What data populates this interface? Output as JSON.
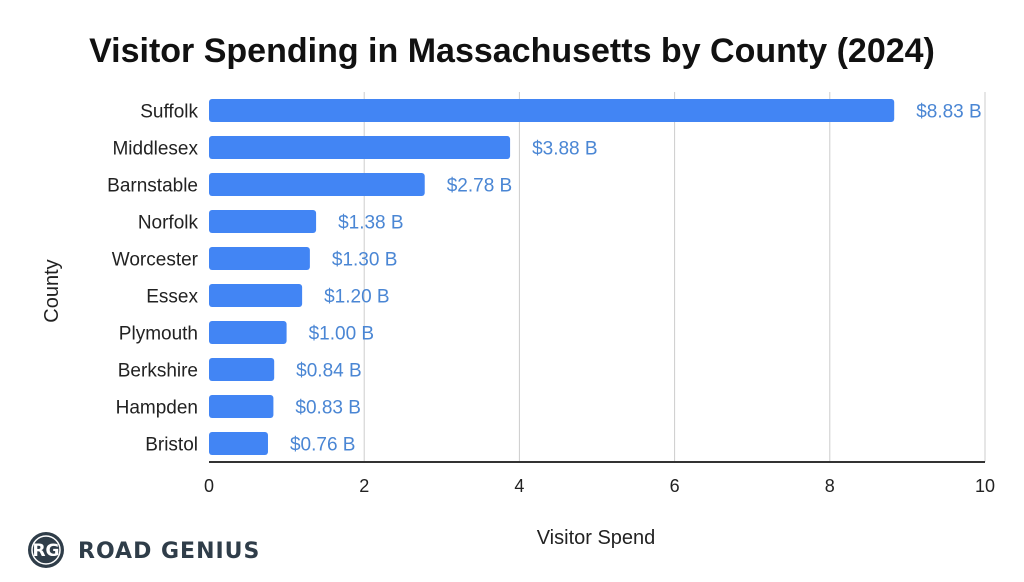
{
  "chart_data": {
    "type": "bar",
    "orientation": "horizontal",
    "title": "Visitor Spending in Massachusetts by County (2024)",
    "xlabel": "Visitor Spend",
    "ylabel": "County",
    "categories": [
      "Suffolk",
      "Middlesex",
      "Barnstable",
      "Norfolk",
      "Worcester",
      "Essex",
      "Plymouth",
      "Berkshire",
      "Hampden",
      "Bristol"
    ],
    "values": [
      8.83,
      3.88,
      2.78,
      1.38,
      1.3,
      1.2,
      1.0,
      0.84,
      0.83,
      0.76
    ],
    "data_labels": [
      "$8.83 B",
      "$3.88 B",
      "$2.78 B",
      "$1.38 B",
      "$1.30 B",
      "$1.20 B",
      "$1.00 B",
      "$0.84 B",
      "$0.83 B",
      "$0.76 B"
    ],
    "xlim": [
      0,
      10
    ],
    "xticks": [
      0,
      2,
      4,
      6,
      8,
      10
    ],
    "grid": true,
    "legend": "none",
    "bar_color": "#4285f4",
    "label_color": "#4a86d4"
  },
  "branding": {
    "logo_mark": "RG",
    "logo_text": "ROAD GENIUS"
  }
}
